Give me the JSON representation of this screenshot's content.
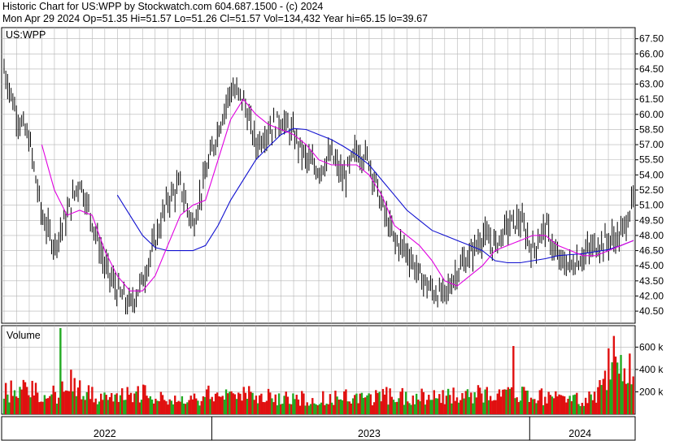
{
  "header": {
    "line1": "Historic Chart for US:WPP by Stockwatch.com 604.687.1500 - (c) 2024",
    "line2": "Mon Apr 29 2024   Op=51.35   Hi=51.57   Lo=51.26   Cl=51.57   Vol=134,432   Year hi=65.15   lo=39.67"
  },
  "colors": {
    "background": "#ffffff",
    "grid": "#b4b4b4",
    "frame": "#000000",
    "candle": "#000000",
    "ma_short": "#e000e0",
    "ma_long": "#1010d0",
    "volume_up": "#22aa22",
    "volume_down": "#e01010"
  },
  "chart_data": [
    {
      "type": "line",
      "label": "US:WPP",
      "y_axis": {
        "ticks": [
          40.5,
          42.0,
          43.5,
          45.0,
          46.5,
          48.0,
          49.5,
          51.0,
          52.5,
          54.0,
          55.5,
          57.0,
          58.5,
          60.0,
          61.5,
          63.0,
          64.5,
          66.0,
          67.5
        ],
        "tick_labels": [
          "40.50",
          "42.00",
          "43.50",
          "45.00",
          "46.50",
          "48.00",
          "49.50",
          "51.00",
          "52.50",
          "54.00",
          "55.50",
          "57.00",
          "58.50",
          "60.00",
          "61.50",
          "63.00",
          "64.50",
          "66.00",
          "67.50"
        ],
        "ylim": [
          39.3,
          68.6
        ]
      },
      "x_axis": {
        "labels": [
          "2022",
          "2023",
          "2024"
        ],
        "index_range": [
          0,
          100
        ]
      },
      "grid": true,
      "series": [
        {
          "role": "price_close",
          "x": [
            0,
            2,
            4,
            6,
            8,
            10,
            12,
            14,
            16,
            18,
            20,
            22,
            24,
            26,
            28,
            30,
            32,
            34,
            36,
            38,
            40,
            42,
            44,
            46,
            48,
            50,
            52,
            54,
            56,
            58,
            60,
            62,
            64,
            66,
            68,
            70,
            72,
            74,
            76,
            78,
            80,
            82,
            84,
            86,
            88,
            90,
            92,
            94,
            96,
            98,
            100
          ],
          "y": [
            64.5,
            60.0,
            57.5,
            50.0,
            47.0,
            50.0,
            53.5,
            49.5,
            45.0,
            42.5,
            41.0,
            43.5,
            47.5,
            51.5,
            53.0,
            49.0,
            54.0,
            58.5,
            62.5,
            61.5,
            57.0,
            58.5,
            59.5,
            58.0,
            55.5,
            54.5,
            56.0,
            53.5,
            56.5,
            55.5,
            51.0,
            47.5,
            46.5,
            44.0,
            42.5,
            42.0,
            44.5,
            46.0,
            48.0,
            47.0,
            49.0,
            49.5,
            46.5,
            49.0,
            45.5,
            45.0,
            46.0,
            47.0,
            47.5,
            48.0,
            51.5
          ]
        },
        {
          "role": "moving_average_short",
          "x": [
            6,
            8,
            10,
            12,
            14,
            16,
            18,
            20,
            22,
            24,
            26,
            28,
            30,
            32,
            34,
            36,
            38,
            40,
            42,
            44,
            46,
            48,
            50,
            52,
            54,
            56,
            58,
            60,
            62,
            64,
            66,
            68,
            70,
            72,
            74,
            76,
            78,
            80,
            82,
            84,
            86,
            88,
            90,
            92,
            94,
            96,
            98,
            100
          ],
          "y": [
            57.0,
            52.5,
            50.0,
            50.5,
            50.0,
            46.5,
            44.0,
            42.5,
            42.5,
            44.0,
            47.0,
            50.0,
            51.0,
            51.5,
            55.5,
            59.5,
            61.5,
            60.0,
            59.0,
            58.5,
            58.0,
            57.0,
            55.5,
            55.0,
            55.0,
            55.0,
            54.0,
            52.0,
            49.0,
            48.0,
            47.0,
            45.5,
            43.5,
            43.0,
            44.0,
            45.0,
            46.5,
            47.0,
            47.5,
            48.0,
            48.0,
            47.0,
            46.5,
            46.0,
            46.0,
            46.5,
            47.0,
            47.5
          ]
        },
        {
          "role": "moving_average_long",
          "x": [
            18,
            20,
            22,
            24,
            26,
            28,
            30,
            32,
            34,
            36,
            38,
            40,
            42,
            44,
            46,
            48,
            50,
            52,
            54,
            56,
            58,
            60,
            62,
            64,
            66,
            68,
            70,
            72,
            74,
            76,
            78,
            80,
            82,
            84,
            86,
            88,
            90,
            92,
            94,
            96,
            98,
            100
          ],
          "y": [
            52.0,
            50.0,
            48.0,
            46.8,
            46.5,
            46.5,
            46.5,
            47.0,
            49.0,
            51.5,
            53.5,
            55.5,
            56.8,
            58.0,
            58.6,
            58.5,
            58.0,
            57.5,
            56.8,
            56.0,
            55.0,
            53.5,
            52.0,
            50.5,
            49.5,
            48.5,
            48.0,
            47.5,
            47.0,
            46.5,
            45.5,
            45.3,
            45.3,
            45.5,
            45.7,
            46.0,
            46.1,
            46.2,
            46.4,
            46.6,
            47.0,
            47.5
          ]
        }
      ]
    },
    {
      "type": "bar",
      "label": "Volume",
      "y_axis": {
        "ticks": [
          200,
          400,
          600
        ],
        "tick_labels": [
          "200 k",
          "400 k",
          "600 k"
        ],
        "ylim": [
          0,
          770
        ]
      },
      "x_axis": {
        "index_range": [
          0,
          100
        ]
      },
      "grid": true,
      "series": [
        {
          "name": "up",
          "x": [
            0,
            3,
            6,
            9,
            12,
            15,
            18,
            21,
            24,
            27,
            30,
            33,
            36,
            39,
            42,
            45,
            48,
            51,
            54,
            57,
            60,
            63,
            66,
            69,
            72,
            75,
            78,
            81,
            84,
            87,
            90,
            93,
            96,
            99
          ],
          "values": [
            140,
            200,
            180,
            160,
            140,
            180,
            150,
            160,
            170,
            120,
            110,
            150,
            170,
            150,
            140,
            160,
            120,
            130,
            130,
            150,
            170,
            140,
            170,
            150,
            200,
            150,
            180,
            190,
            160,
            120,
            130,
            140,
            400,
            420
          ]
        },
        {
          "name": "down",
          "x": [
            1,
            4,
            7,
            10,
            13,
            16,
            19,
            22,
            25,
            28,
            31,
            34,
            37,
            40,
            43,
            46,
            49,
            52,
            55,
            58,
            61,
            64,
            67,
            70,
            73,
            76,
            79,
            82,
            85,
            88,
            91,
            94,
            97,
            100
          ],
          "values": [
            280,
            230,
            200,
            320,
            210,
            190,
            220,
            200,
            150,
            130,
            180,
            190,
            200,
            170,
            170,
            140,
            160,
            150,
            170,
            150,
            200,
            160,
            190,
            170,
            170,
            210,
            160,
            200,
            180,
            150,
            140,
            180,
            700,
            360
          ]
        },
        {
          "name": "spikes",
          "x": [
            9,
            81,
            97
          ],
          "values": [
            770,
            610,
            700
          ]
        }
      ]
    }
  ]
}
